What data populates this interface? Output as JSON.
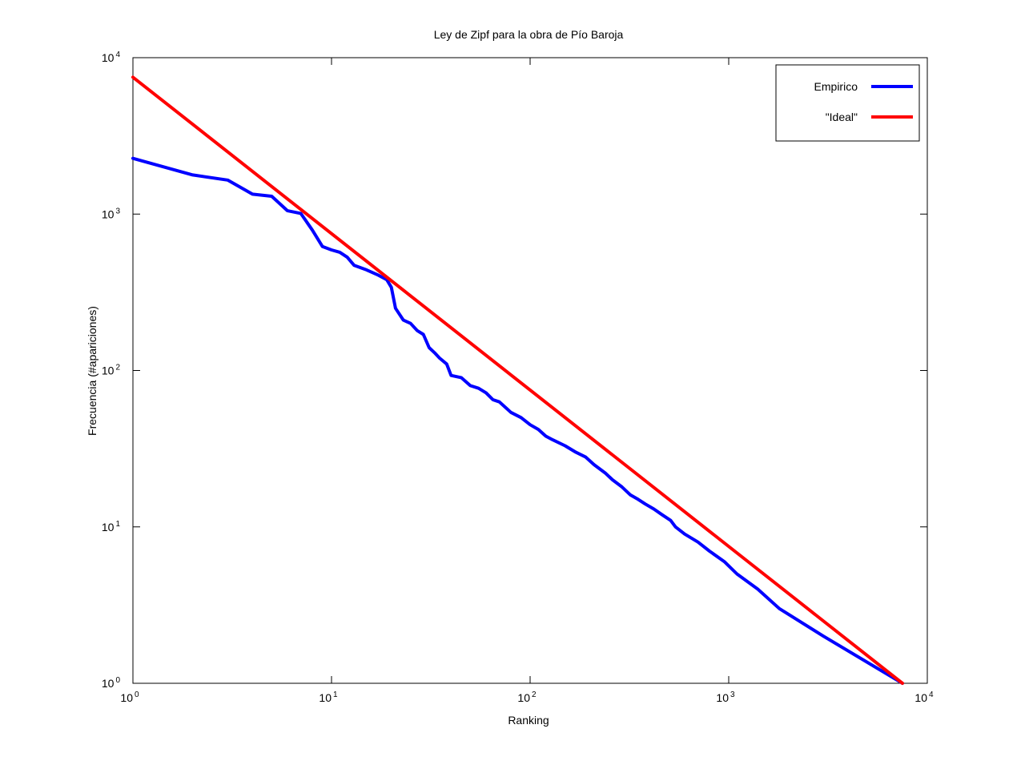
{
  "chart_data": {
    "type": "line",
    "title": "Ley de Zipf para la obra de Pío Baroja",
    "xlabel": "Ranking",
    "ylabel": "Frecuencia (#apariciones)",
    "x_scale": "log",
    "y_scale": "log",
    "xlim": [
      1,
      10000
    ],
    "ylim": [
      1,
      10000
    ],
    "x_ticks": [
      {
        "base": "10",
        "exp": "0",
        "value": 1
      },
      {
        "base": "10",
        "exp": "1",
        "value": 10
      },
      {
        "base": "10",
        "exp": "2",
        "value": 100
      },
      {
        "base": "10",
        "exp": "3",
        "value": 1000
      },
      {
        "base": "10",
        "exp": "4",
        "value": 10000
      }
    ],
    "y_ticks": [
      {
        "base": "10",
        "exp": "0",
        "value": 1
      },
      {
        "base": "10",
        "exp": "1",
        "value": 10
      },
      {
        "base": "10",
        "exp": "2",
        "value": 100
      },
      {
        "base": "10",
        "exp": "3",
        "value": 1000
      },
      {
        "base": "10",
        "exp": "4",
        "value": 10000
      }
    ],
    "grid": false,
    "legend_position": "top-right",
    "series": [
      {
        "name": "Empirico",
        "color": "#0000ff",
        "points": [
          [
            1,
            2270
          ],
          [
            2,
            1780
          ],
          [
            3,
            1650
          ],
          [
            4,
            1340
          ],
          [
            5,
            1300
          ],
          [
            6,
            1050
          ],
          [
            7,
            1010
          ],
          [
            8,
            790
          ],
          [
            9,
            620
          ],
          [
            10,
            590
          ],
          [
            11,
            570
          ],
          [
            12,
            530
          ],
          [
            13,
            470
          ],
          [
            15,
            440
          ],
          [
            17,
            410
          ],
          [
            19,
            380
          ],
          [
            20,
            340
          ],
          [
            21,
            250
          ],
          [
            23,
            210
          ],
          [
            25,
            200
          ],
          [
            27,
            180
          ],
          [
            29,
            170
          ],
          [
            31,
            140
          ],
          [
            33,
            130
          ],
          [
            35,
            120
          ],
          [
            38,
            110
          ],
          [
            40,
            93
          ],
          [
            45,
            90
          ],
          [
            50,
            80
          ],
          [
            55,
            77
          ],
          [
            60,
            72
          ],
          [
            65,
            65
          ],
          [
            70,
            63
          ],
          [
            80,
            54
          ],
          [
            90,
            50
          ],
          [
            100,
            45
          ],
          [
            110,
            42
          ],
          [
            120,
            38
          ],
          [
            130,
            36
          ],
          [
            150,
            33
          ],
          [
            170,
            30
          ],
          [
            190,
            28
          ],
          [
            210,
            25
          ],
          [
            240,
            22
          ],
          [
            260,
            20
          ],
          [
            290,
            18
          ],
          [
            320,
            16
          ],
          [
            350,
            15
          ],
          [
            380,
            14
          ],
          [
            420,
            13
          ],
          [
            460,
            12
          ],
          [
            510,
            11
          ],
          [
            540,
            10
          ],
          [
            600,
            9
          ],
          [
            700,
            8
          ],
          [
            800,
            7
          ],
          [
            950,
            6
          ],
          [
            1100,
            5
          ],
          [
            1400,
            4
          ],
          [
            1800,
            3
          ],
          [
            3000,
            2
          ],
          [
            7500,
            1
          ]
        ]
      },
      {
        "name": "\"Ideal\"",
        "color": "#ff0000",
        "points": [
          [
            1,
            7500
          ],
          [
            7500,
            1
          ]
        ]
      }
    ]
  }
}
